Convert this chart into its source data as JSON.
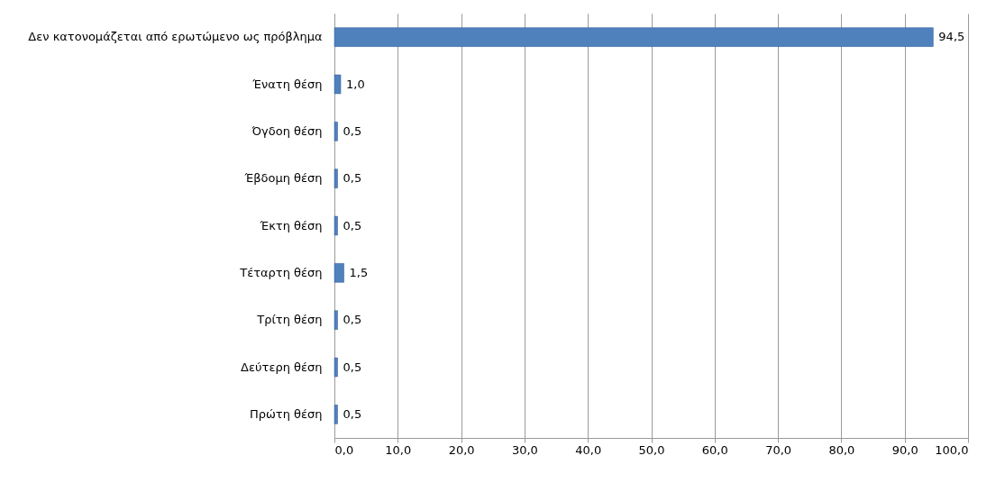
{
  "chart_data": {
    "type": "bar",
    "orientation": "horizontal",
    "categories": [
      "Δεν κατονομάζεται από ερωτώμενο ως πρόβλημα",
      "Ένατη θέση",
      "Όγδοη θέση",
      "Έβδομη θέση",
      "Έκτη θέση",
      "Τέταρτη θέση",
      "Τρίτη θέση",
      "Δεύτερη θέση",
      "Πρώτη θέση"
    ],
    "values": [
      94.5,
      1.0,
      0.5,
      0.5,
      0.5,
      1.5,
      0.5,
      0.5,
      0.5
    ],
    "value_labels": [
      "94,5",
      "1,0",
      "0,5",
      "0,5",
      "0,5",
      "1,5",
      "0,5",
      "0,5",
      "0,5"
    ],
    "color": "#4f81bd",
    "xlim": [
      0,
      100
    ],
    "xticks": [
      {
        "value": 0,
        "label": "0,0"
      },
      {
        "value": 10,
        "label": "10,0"
      },
      {
        "value": 20,
        "label": "20,0"
      },
      {
        "value": 30,
        "label": "30,0"
      },
      {
        "value": 40,
        "label": "40,0"
      },
      {
        "value": 50,
        "label": "50,0"
      },
      {
        "value": 60,
        "label": "60,0"
      },
      {
        "value": 70,
        "label": "70,0"
      },
      {
        "value": 80,
        "label": "80,0"
      },
      {
        "value": 90,
        "label": "90,0"
      },
      {
        "value": 100,
        "label": "100,0"
      }
    ],
    "grid": "x"
  }
}
